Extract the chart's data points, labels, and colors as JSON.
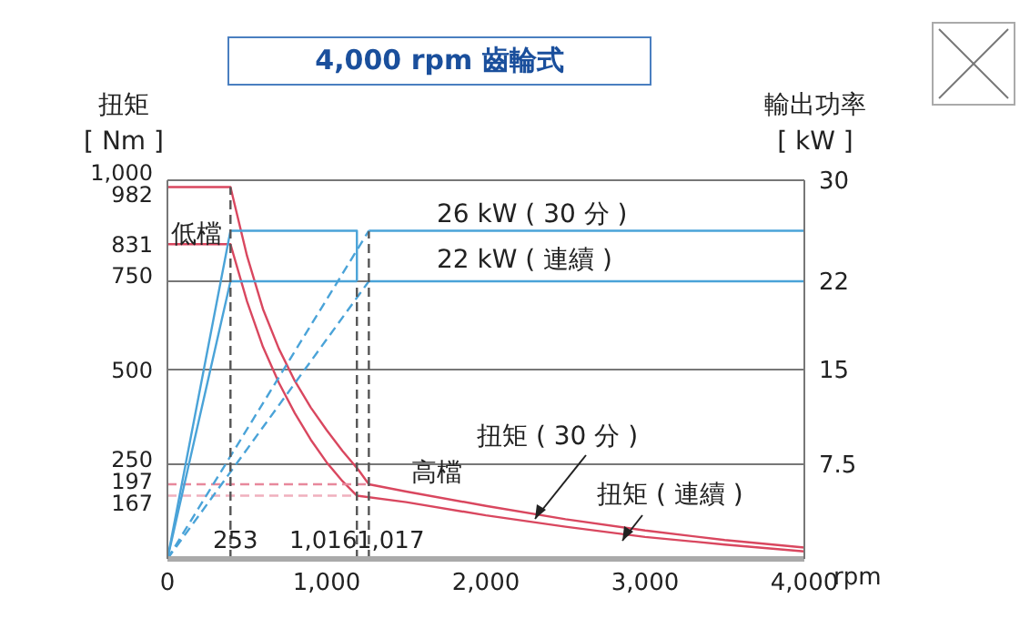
{
  "chart_data": {
    "type": "line",
    "title": "4,000 rpm 齒輪式",
    "xlabel": "rpm",
    "ylabel": "扭矩\n[ Nm ]",
    "y2label": "輸出功率\n[ kW ]",
    "xlim": [
      0,
      4000
    ],
    "xticks": [
      0,
      {
        "value": 1000,
        "label": "1,000"
      },
      {
        "value": 2000,
        "label": "2,000"
      },
      {
        "value": 3000,
        "label": "3,000"
      },
      {
        "value": 4000,
        "label": "4,000"
      }
    ],
    "ylim": [
      0,
      1000
    ],
    "yticks": [
      167,
      197,
      250,
      500,
      750,
      831,
      982,
      {
        "value": 1000,
        "label": "1,000"
      }
    ],
    "y2lim": [
      0,
      30
    ],
    "y2ticks": [
      7.5,
      15,
      22,
      30
    ],
    "grid": "y",
    "legend": false,
    "marker": "none",
    "series": [
      {
        "color": "#d9475f",
        "line_style": "solid",
        "x": [
          0,
          396,
          500,
          600,
          700,
          800,
          900,
          1000,
          1100,
          1200,
          1265,
          1500,
          2000,
          2500,
          3000,
          3500,
          4000
        ],
        "values": [
          982,
          982,
          800,
          660,
          555,
          470,
          400,
          340,
          285,
          235,
          197,
          178,
          140,
          105,
          75,
          50,
          30
        ]
      },
      {
        "color": "#d9475f",
        "line_style": "solid",
        "x": [
          0,
          396,
          500,
          600,
          700,
          800,
          900,
          1000,
          1100,
          1190,
          1500,
          2000,
          2500,
          3000,
          3500,
          4000
        ],
        "values": [
          831,
          831,
          680,
          560,
          465,
          385,
          315,
          255,
          205,
          167,
          150,
          115,
          85,
          58,
          38,
          20
        ]
      },
      {
        "color": "#e8889c",
        "line_style": "dashed",
        "x": [
          0,
          1265
        ],
        "values": [
          197,
          197
        ]
      },
      {
        "color": "#f0b0bd",
        "line_style": "dashed",
        "x": [
          0,
          1190
        ],
        "values": [
          167,
          167
        ]
      },
      {
        "color": "#4aa3d8",
        "line_style": "solid",
        "axis": "y2",
        "x": [
          0,
          396,
          1190,
          1190
        ],
        "values": [
          0,
          26,
          26,
          22
        ]
      },
      {
        "color": "#4aa3d8",
        "line_style": "solid",
        "axis": "y2",
        "x": [
          0,
          396,
          1190
        ],
        "values": [
          0,
          22,
          22
        ]
      },
      {
        "color": "#4aa3d8",
        "line_style": "solid",
        "axis": "y2",
        "x": [
          1265,
          4000
        ],
        "values": [
          26,
          26
        ]
      },
      {
        "color": "#4aa3d8",
        "line_style": "solid",
        "axis": "y2",
        "x": [
          1265,
          4000
        ],
        "values": [
          22,
          22
        ]
      },
      {
        "color": "#4aa3d8",
        "line_style": "dashed",
        "axis": "y2",
        "x": [
          0,
          1265
        ],
        "values": [
          0,
          26
        ]
      },
      {
        "color": "#4aa3d8",
        "line_style": "dashed",
        "axis": "y2",
        "x": [
          0,
          1265
        ],
        "values": [
          0,
          22
        ]
      },
      {
        "color": "#555555",
        "line_style": "dashed",
        "x": [
          396,
          396
        ],
        "values": [
          0,
          982
        ]
      },
      {
        "color": "#555555",
        "line_style": "dashed",
        "x": [
          1190,
          1190
        ],
        "values": [
          0,
          730
        ]
      },
      {
        "color": "#555555",
        "line_style": "dashed",
        "x": [
          1265,
          1265
        ],
        "values": [
          0,
          865
        ]
      }
    ],
    "annotations": [
      "低檔",
      "26 kW ( 30 分 )",
      "22 kW ( 連續 )",
      "高檔",
      "扭矩 ( 30 分 )",
      "扭矩 ( 連續 )",
      "253",
      "1,016",
      "1,017"
    ]
  }
}
